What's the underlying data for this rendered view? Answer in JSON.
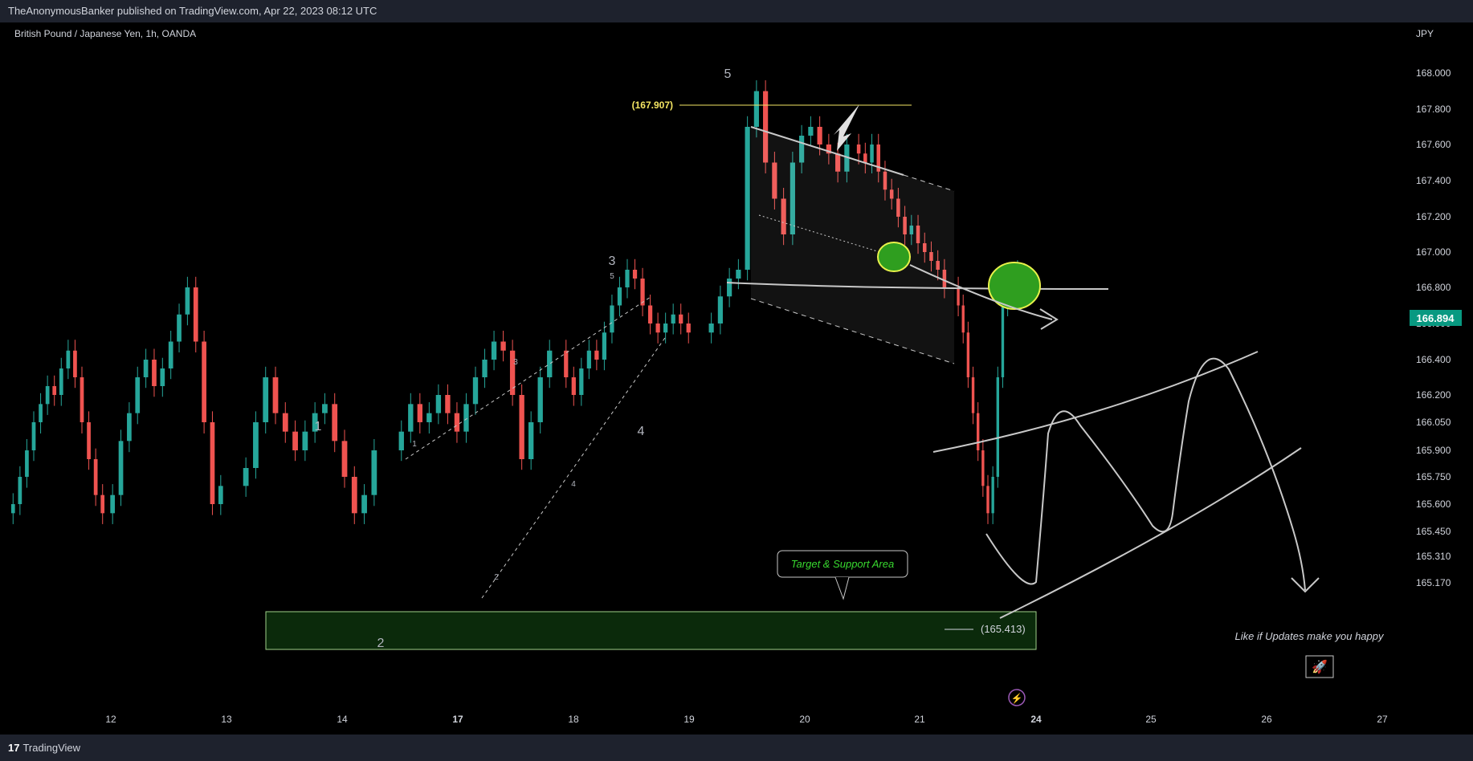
{
  "header": {
    "publish_line": "TheAnonymousBanker published on TradingView.com, Apr 22, 2023 08:12 UTC"
  },
  "symbol_line": "British Pound / Japanese Yen, 1h, OANDA",
  "footer": {
    "brand": "TradingView"
  },
  "colors": {
    "up": "#26a69a",
    "down": "#ef5350",
    "bg": "#000000",
    "price_tag": "#089981"
  },
  "chart_data": {
    "type": "candlestick",
    "currency_label": "JPY",
    "y_ticks": [
      168.0,
      167.8,
      167.6,
      167.4,
      167.2,
      167.0,
      166.8,
      166.6,
      166.4,
      166.2,
      166.05,
      165.9,
      165.75,
      165.6,
      165.45,
      165.31,
      165.17
    ],
    "y_tick_labels": [
      "168.000",
      "167.800",
      "167.600",
      "167.400",
      "167.200",
      "167.000",
      "166.800",
      "166.600",
      "166.400",
      "166.200",
      "166.050",
      "165.900",
      "165.750",
      "165.600",
      "165.450",
      "165.310",
      "165.170"
    ],
    "x_ticks": [
      "12",
      "13",
      "14",
      "17",
      "18",
      "19",
      "20",
      "21",
      "24",
      "25",
      "26",
      "27"
    ],
    "x_bold": [
      "17",
      "24"
    ],
    "last_price": "166.894",
    "annotations": {
      "top_level": "(167.907)",
      "support_level": "(165.413)",
      "target_box": "Target & Support Area",
      "like_text": "Like if Updates make you happy",
      "waves_major": [
        "1",
        "2",
        "3",
        "4",
        "5"
      ],
      "waves_minor": [
        "1",
        "2",
        "3",
        "4",
        "5"
      ]
    },
    "segments": [
      {
        "x": "12",
        "closes": [
          165.6,
          165.75,
          165.9,
          166.05,
          166.15,
          166.25,
          166.2,
          166.35,
          166.45,
          166.3,
          166.05,
          165.85,
          165.65,
          165.55
        ]
      },
      {
        "x": "13",
        "closes": [
          165.65,
          165.95,
          166.1,
          166.3,
          166.4,
          166.25,
          166.35,
          166.5,
          166.65,
          166.8,
          166.5,
          166.05,
          165.6,
          165.7
        ]
      },
      {
        "x": "14",
        "closes": [
          165.8,
          166.05,
          166.3,
          166.1,
          166.0,
          165.9,
          166.0,
          166.1,
          166.15,
          165.95,
          165.75,
          165.55,
          165.65,
          165.9
        ]
      },
      {
        "x": "17",
        "closes": [
          166.0,
          166.15,
          166.05,
          166.1,
          166.2,
          166.1,
          166.0,
          166.15,
          166.3,
          166.4,
          166.5,
          166.45,
          166.2,
          165.85,
          166.05,
          166.3,
          166.45
        ]
      },
      {
        "x": "18",
        "closes": [
          166.3,
          166.2,
          166.35,
          166.45,
          166.4,
          166.55,
          166.7,
          166.8,
          166.9,
          166.85,
          166.7,
          166.6,
          166.55,
          166.6,
          166.65,
          166.6,
          166.55
        ]
      },
      {
        "x": "19",
        "closes": [
          166.6,
          166.75,
          166.85,
          166.9,
          167.7,
          167.9,
          167.5,
          167.3,
          167.1,
          167.5,
          167.65,
          167.7,
          167.6,
          167.55,
          167.45,
          167.6
        ]
      },
      {
        "x": "20",
        "closes": [
          167.55,
          167.5,
          167.6,
          167.45,
          167.35,
          167.3,
          167.2,
          167.1,
          167.15,
          167.05,
          167.0,
          166.95,
          166.9,
          166.8
        ]
      },
      {
        "x": "21",
        "closes": [
          166.7,
          166.55,
          166.3,
          166.1,
          165.9,
          165.7,
          165.55,
          165.75,
          166.3,
          166.7,
          166.8,
          166.85,
          166.894
        ]
      }
    ]
  }
}
